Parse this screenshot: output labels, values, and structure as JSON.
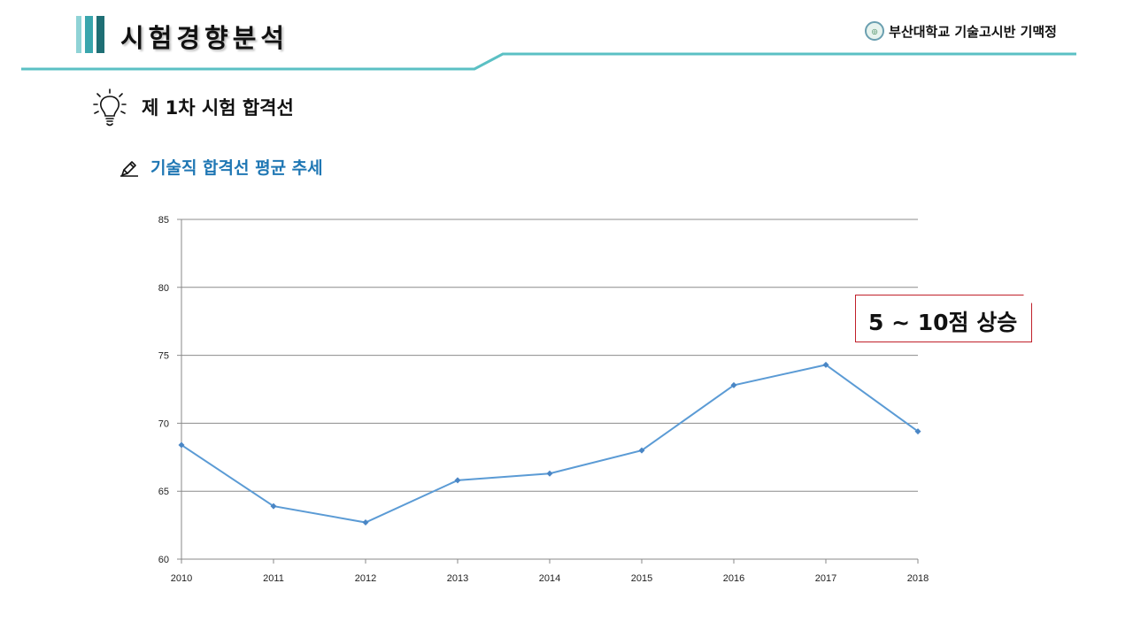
{
  "header": {
    "title": "시험경향분석",
    "org": "부산대학교 기술고시반 기맥정",
    "seal_icon": "university-seal-icon",
    "accent_color": "#5bc0c4"
  },
  "section": {
    "title": "제 1차 시험 합격선",
    "icon": "lightbulb-icon"
  },
  "subsection": {
    "title": "기술직 합격선 평균 추세",
    "icon": "pencil-icon",
    "color": "#1f77b4"
  },
  "callout": {
    "text": "5 ~ 10점 상승",
    "border_color": "#c0202a"
  },
  "chart_data": {
    "type": "line",
    "title": "",
    "xlabel": "",
    "ylabel": "",
    "categories": [
      "2010",
      "2011",
      "2012",
      "2013",
      "2014",
      "2015",
      "2016",
      "2017",
      "2018"
    ],
    "series": [
      {
        "name": "기술직 합격선 평균",
        "values": [
          68.4,
          63.9,
          62.7,
          65.8,
          66.3,
          68.0,
          72.8,
          74.3,
          69.4
        ],
        "color": "#5b9bd5"
      }
    ],
    "ylim": [
      60,
      85
    ],
    "yticks": [
      "60",
      "65",
      "70",
      "75",
      "80",
      "85"
    ],
    "grid": true,
    "legend": "none"
  }
}
